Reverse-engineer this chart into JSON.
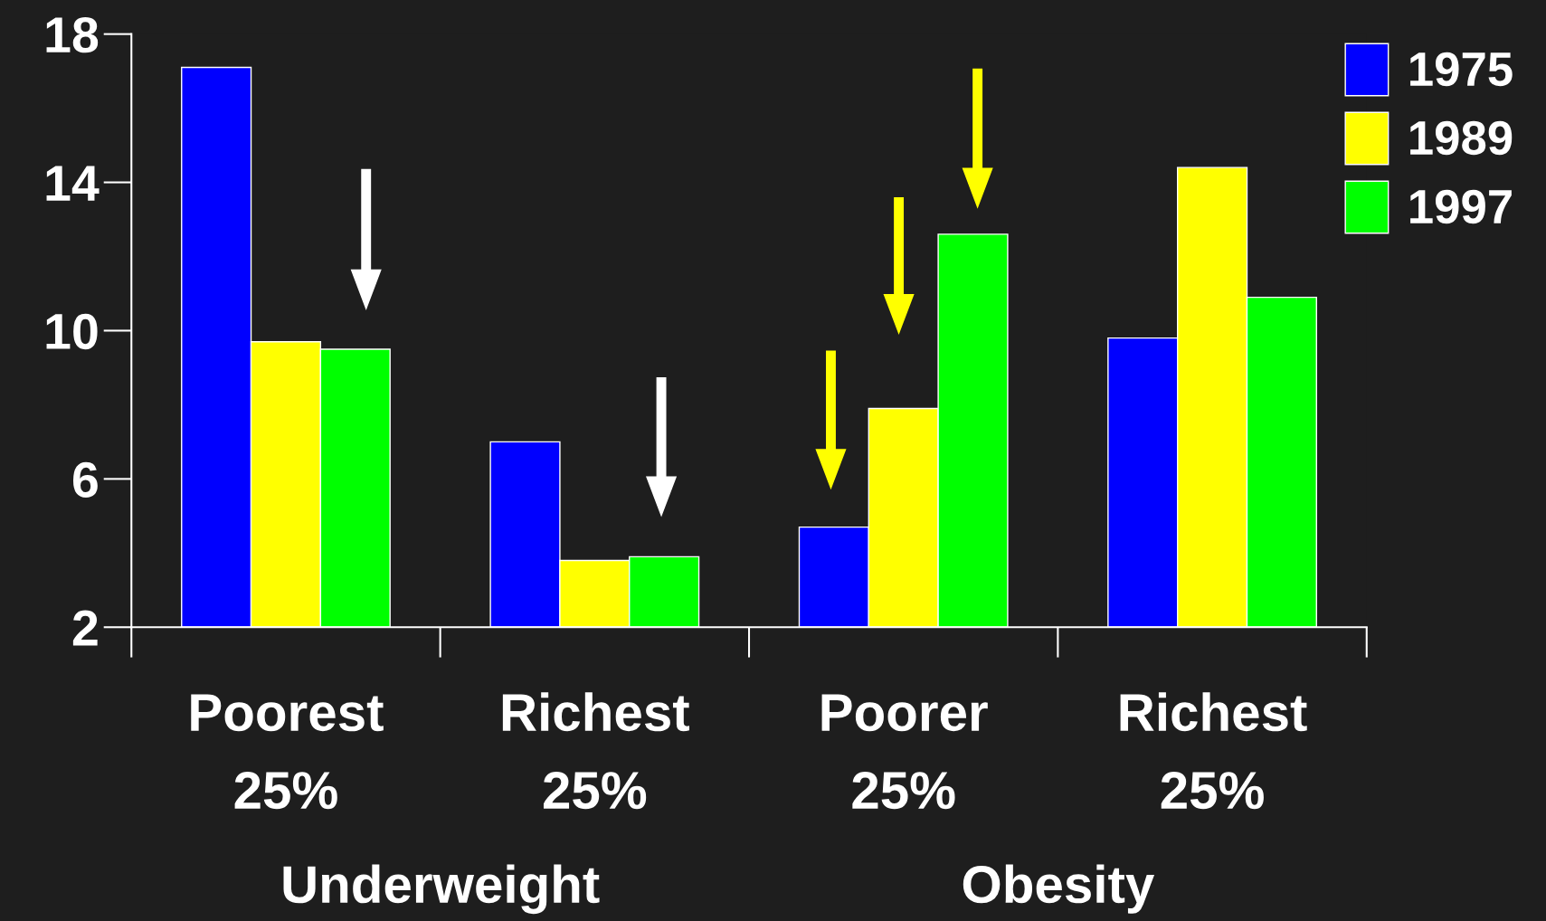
{
  "chart_data": {
    "type": "bar",
    "categories": [
      "Poorest\n25%",
      "Richest\n25%",
      "Poorer\n25%",
      "Richest\n25%"
    ],
    "series": [
      {
        "name": "1975",
        "color": "#0000ff",
        "values": [
          17.1,
          7.0,
          4.7,
          9.8
        ]
      },
      {
        "name": "1989",
        "color": "#ffff00",
        "values": [
          9.7,
          3.8,
          7.9,
          14.4
        ]
      },
      {
        "name": "1997",
        "color": "#00ff00",
        "values": [
          9.5,
          3.9,
          12.6,
          10.9
        ]
      }
    ],
    "ylim": [
      2,
      18
    ],
    "yticks": [
      2,
      6,
      10,
      14,
      18
    ],
    "annotations": [
      "Underweight",
      "Obesity"
    ],
    "grid": false,
    "legend": "top right"
  }
}
